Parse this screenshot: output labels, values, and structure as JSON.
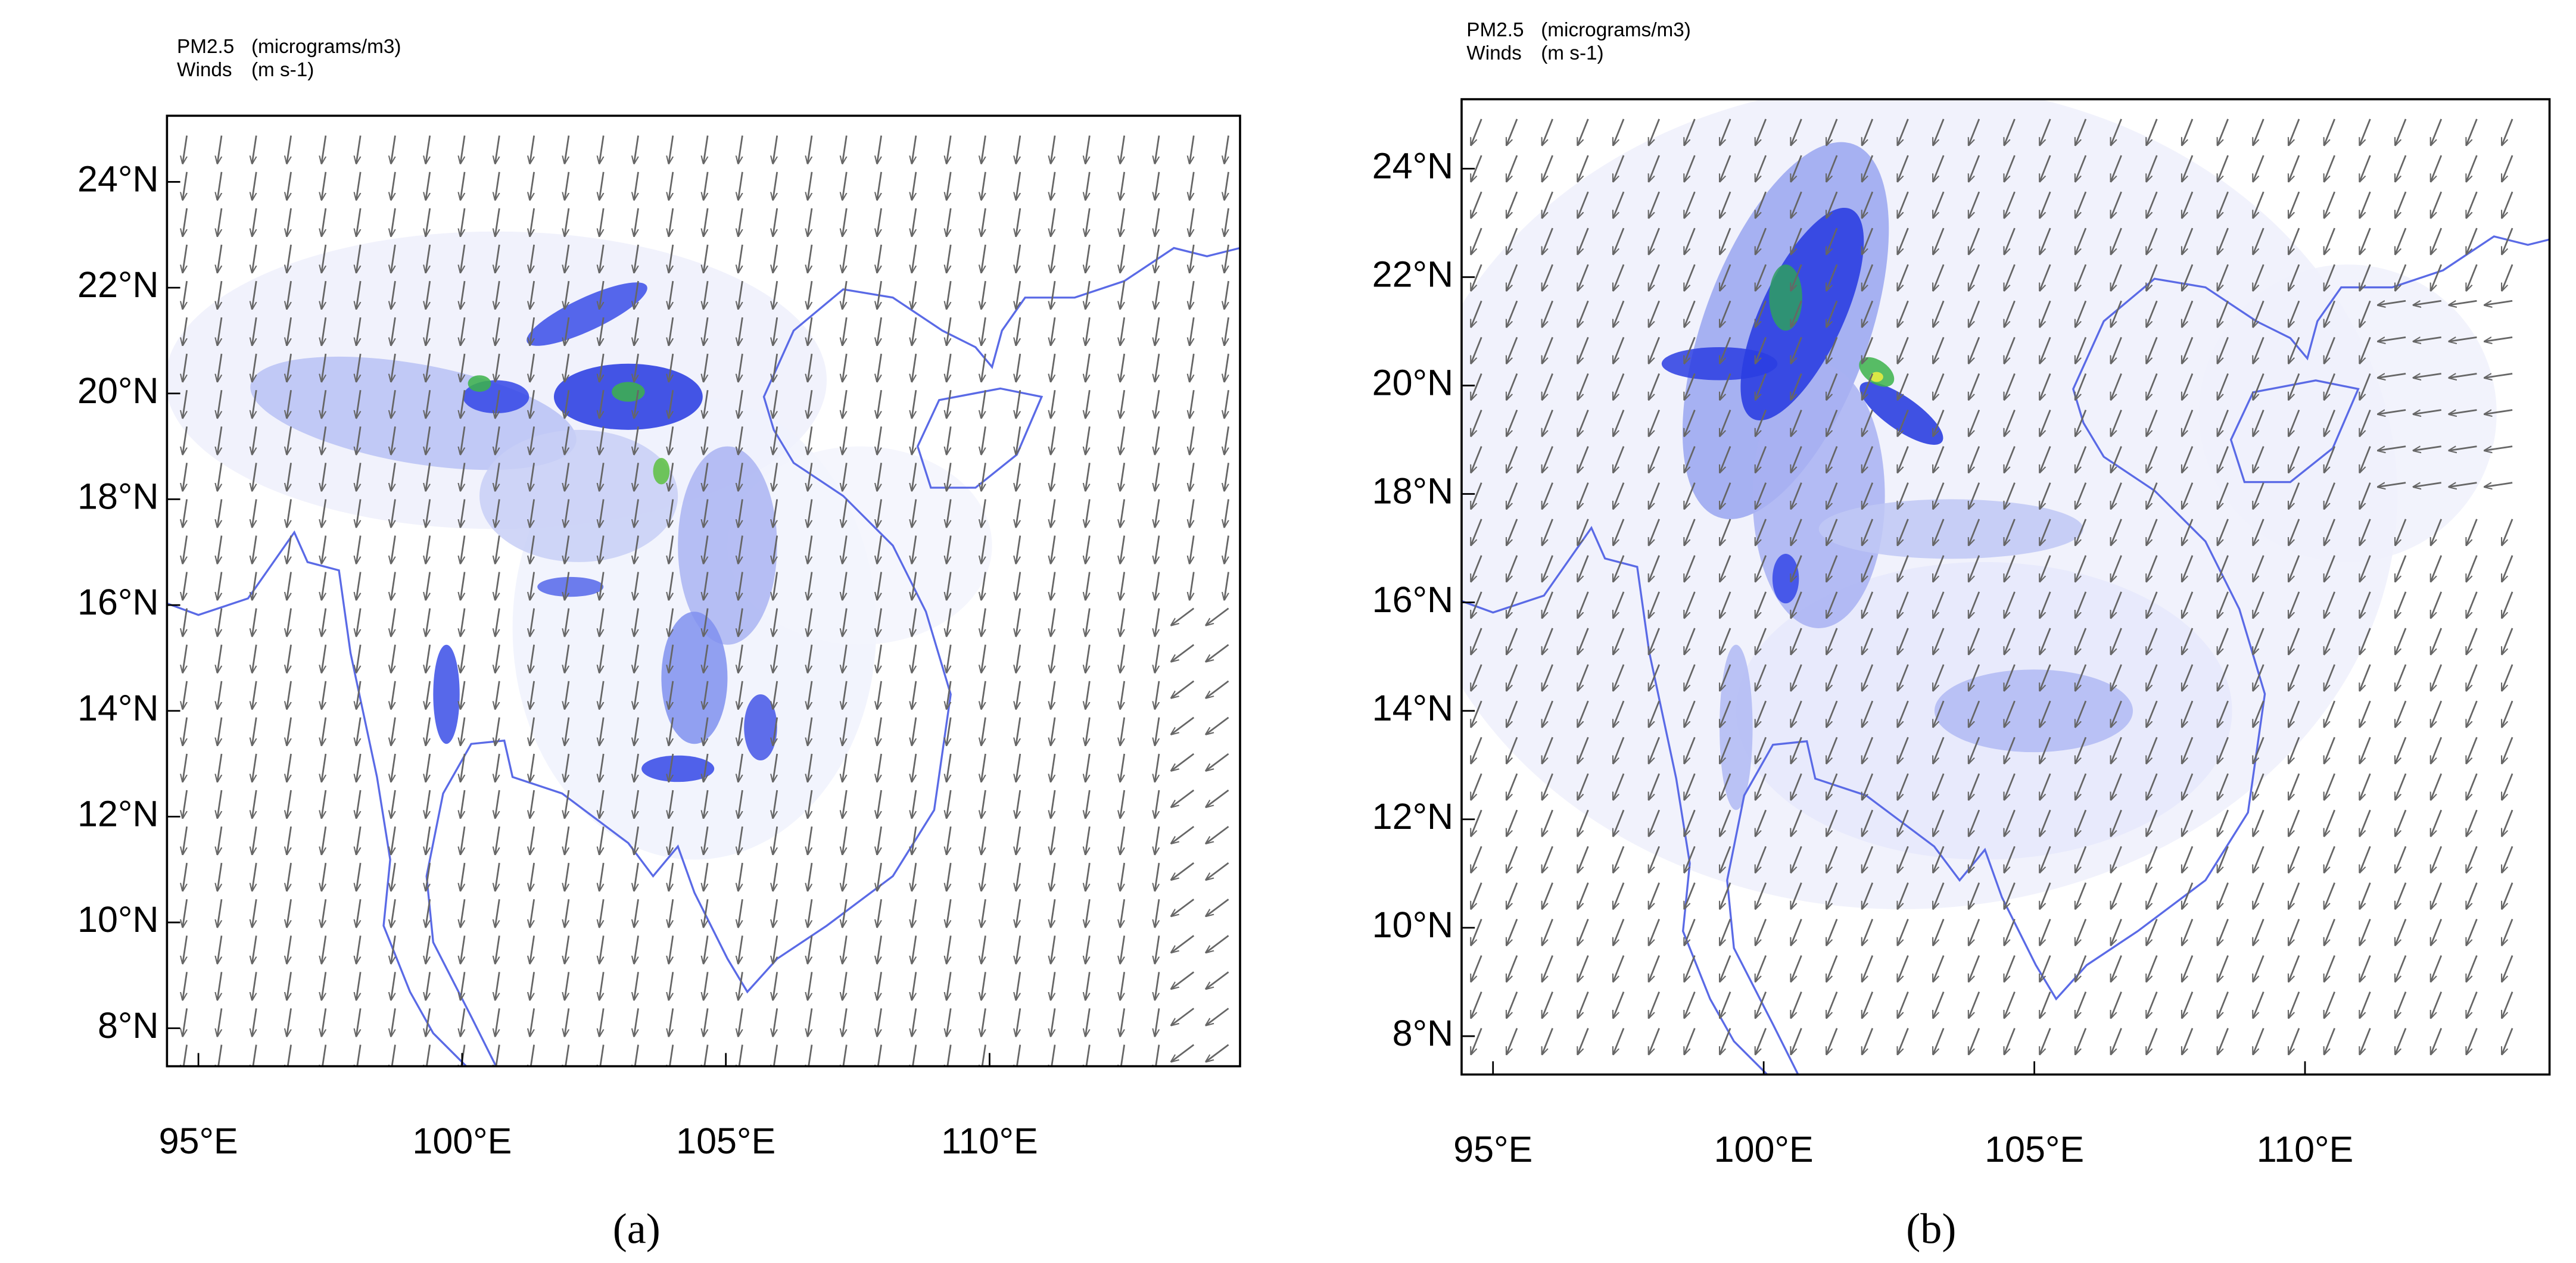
{
  "panels": [
    {
      "caption": "(a)",
      "legend": {
        "field1": "PM2.5",
        "unit1": "(micrograms/m3)",
        "field2": "Winds",
        "unit2": "(m s-1)"
      },
      "lat_labels": [
        "24°N",
        "22°N",
        "20°N",
        "18°N",
        "16°N",
        "14°N",
        "12°N",
        "10°N",
        "8°N"
      ],
      "lon_labels": [
        "95°E",
        "100°E",
        "105°E",
        "110°E"
      ]
    },
    {
      "caption": "(b)",
      "legend": {
        "field1": "PM2.5",
        "unit1": "(micrograms/m3)",
        "field2": "Winds",
        "unit2": "(m s-1)"
      },
      "lat_labels": [
        "24°N",
        "22°N",
        "20°N",
        "18°N",
        "16°N",
        "14°N",
        "12°N",
        "10°N",
        "8°N"
      ],
      "lon_labels": [
        "95°E",
        "100°E",
        "105°E",
        "110°E"
      ]
    }
  ]
}
